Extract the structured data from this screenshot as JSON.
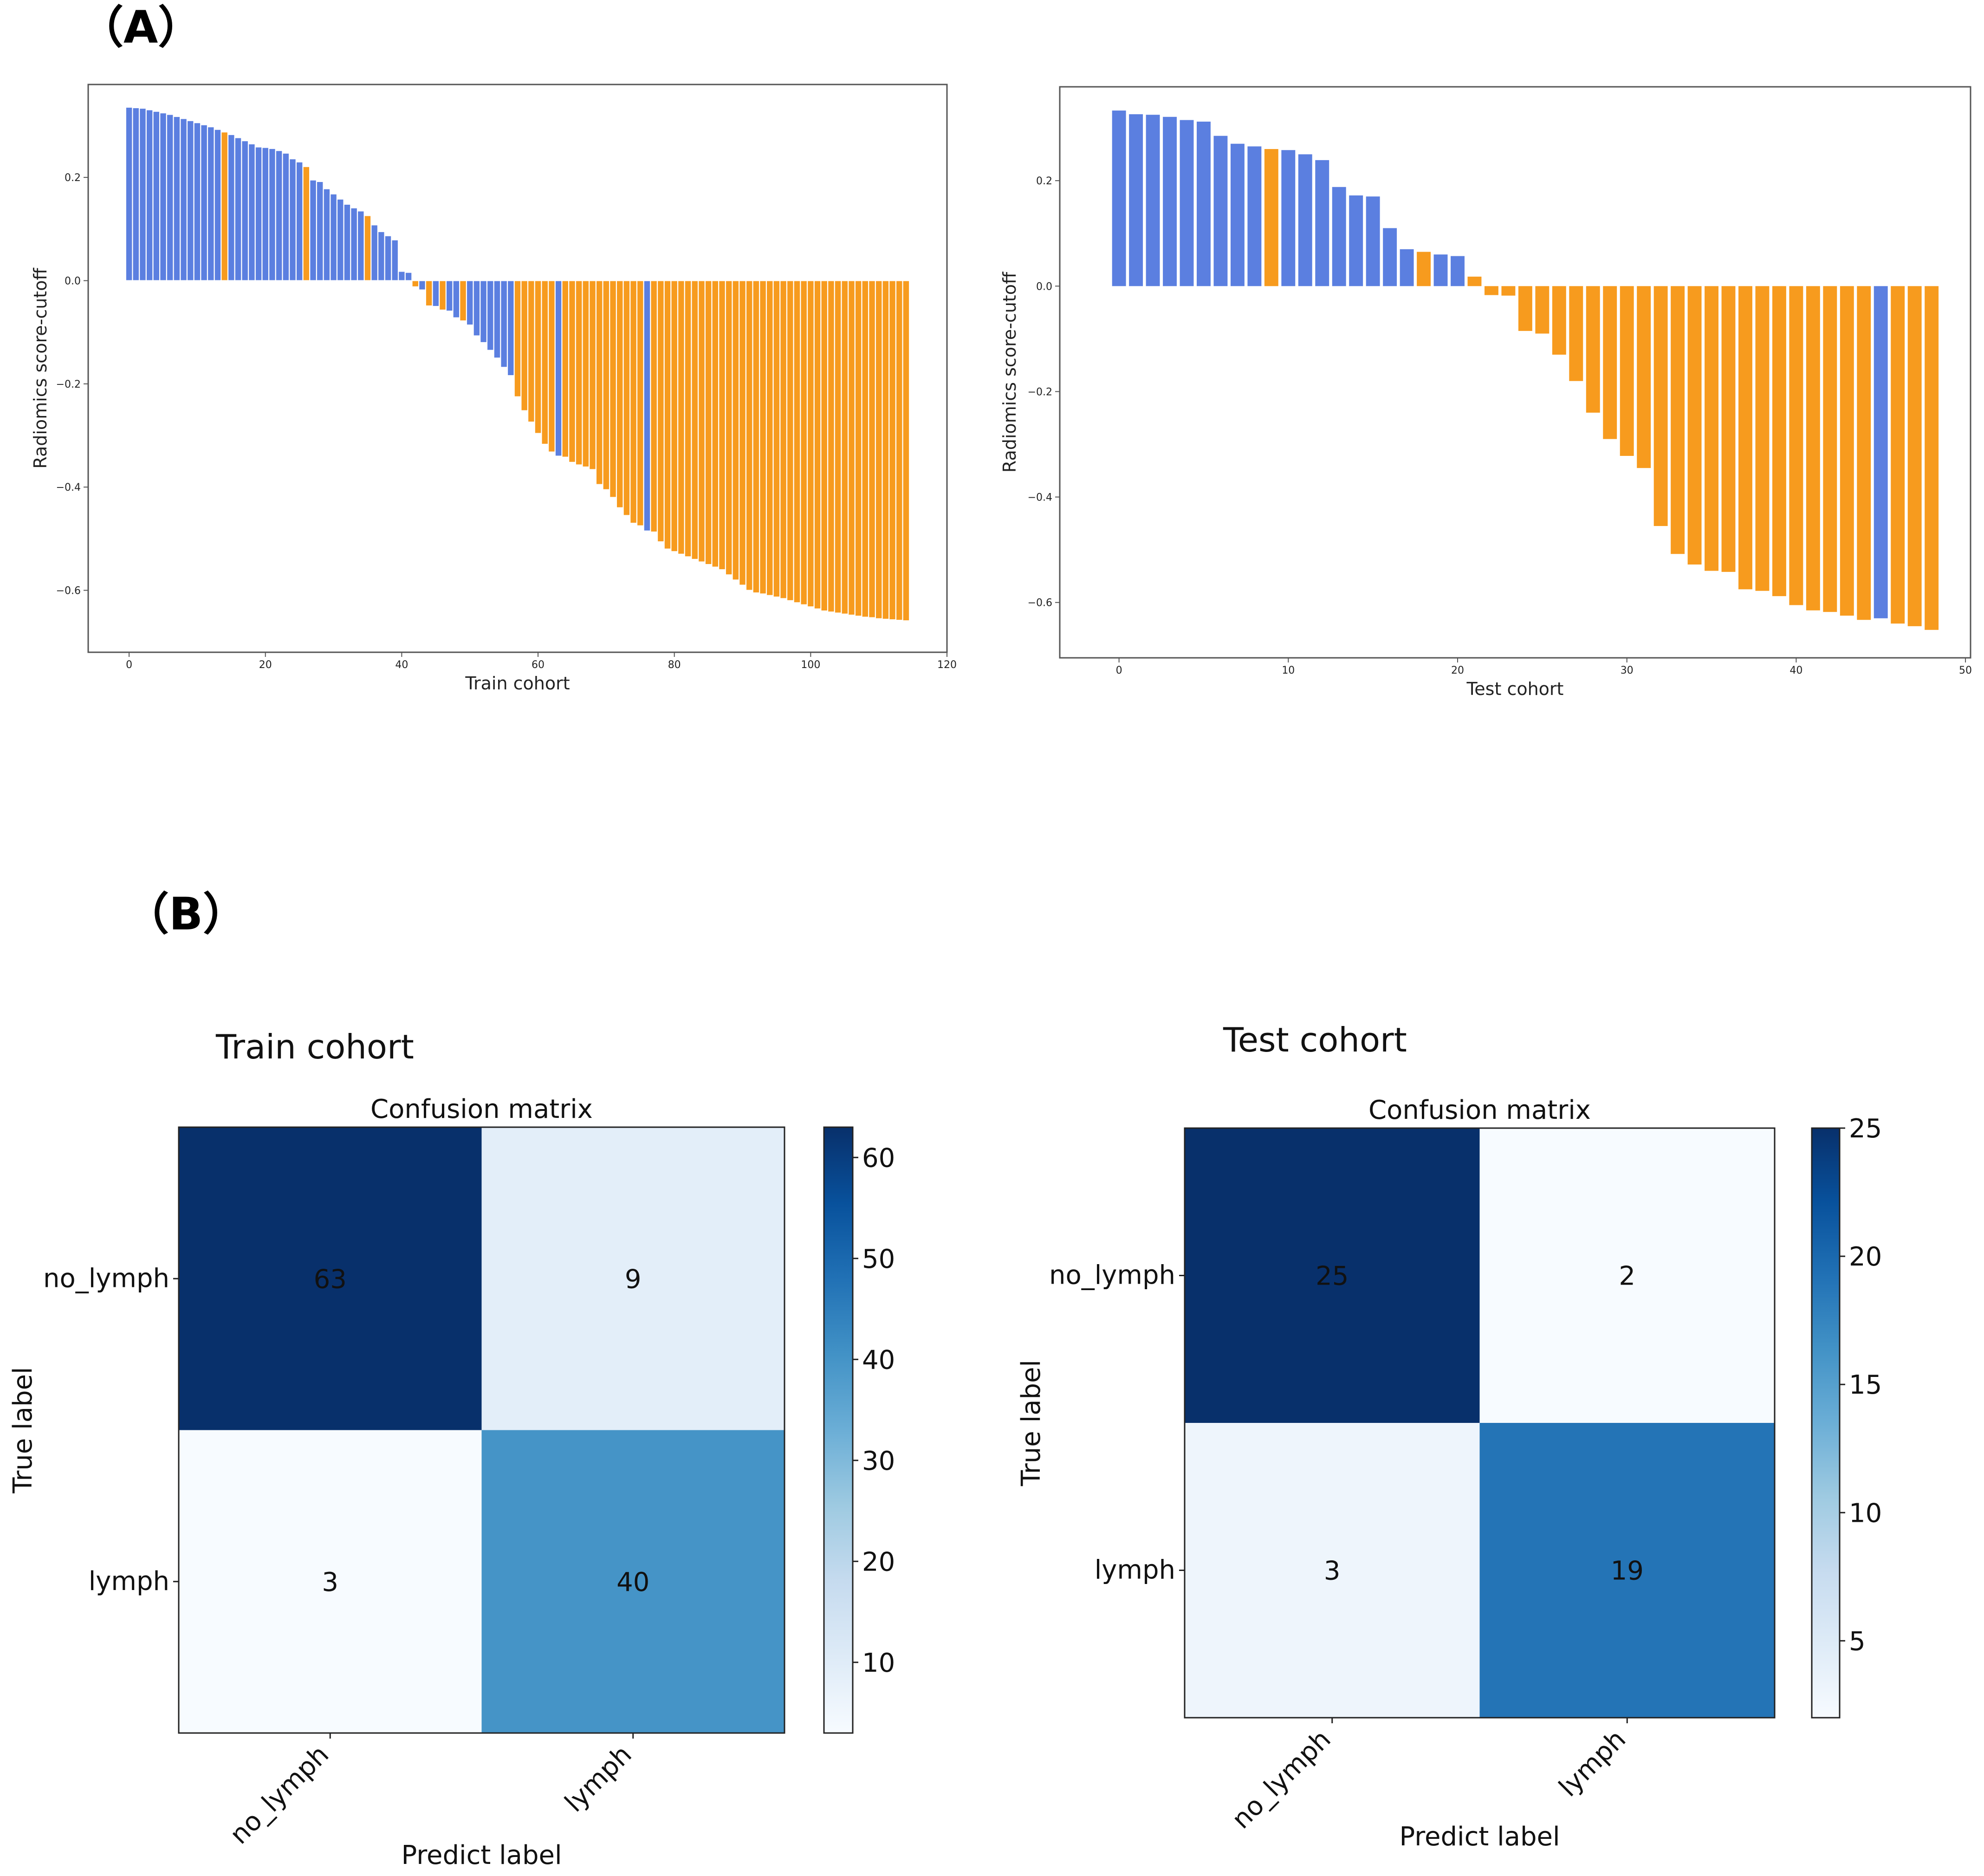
{
  "panels": {
    "a_label": "（A）",
    "b_label": "（B）"
  },
  "chart_data": [
    {
      "type": "bar",
      "name": "waterfall-train",
      "xlabel": "Train cohort",
      "ylabel": "Radiomics score-cutoff",
      "xlim": [
        -6,
        120
      ],
      "ylim": [
        -0.72,
        0.38
      ],
      "xticks": [
        0,
        20,
        40,
        60,
        80,
        100,
        120
      ],
      "yticks": [
        -0.6,
        -0.4,
        -0.2,
        0.0,
        0.2
      ],
      "ytick_labels": [
        "−0.6",
        "−0.4",
        "−0.2",
        "0.0",
        "0.2"
      ],
      "colors": {
        "no_lymph": "#5b7fe0",
        "lymph": "#f79b1e"
      },
      "values": [
        0.336,
        0.335,
        0.334,
        0.331,
        0.328,
        0.325,
        0.322,
        0.318,
        0.314,
        0.31,
        0.306,
        0.302,
        0.298,
        0.293,
        0.288,
        0.283,
        0.277,
        0.271,
        0.265,
        0.259,
        0.258,
        0.256,
        0.252,
        0.247,
        0.236,
        0.23,
        0.221,
        0.195,
        0.192,
        0.178,
        0.168,
        0.158,
        0.148,
        0.141,
        0.135,
        0.126,
        0.108,
        0.095,
        0.087,
        0.079,
        0.018,
        0.016,
        -0.012,
        -0.018,
        -0.049,
        -0.05,
        -0.057,
        -0.059,
        -0.072,
        -0.078,
        -0.086,
        -0.107,
        -0.12,
        -0.135,
        -0.15,
        -0.168,
        -0.184,
        -0.225,
        -0.252,
        -0.274,
        -0.296,
        -0.317,
        -0.332,
        -0.34,
        -0.342,
        -0.352,
        -0.357,
        -0.361,
        -0.366,
        -0.395,
        -0.405,
        -0.42,
        -0.44,
        -0.455,
        -0.47,
        -0.475,
        -0.485,
        -0.487,
        -0.506,
        -0.52,
        -0.525,
        -0.53,
        -0.535,
        -0.54,
        -0.545,
        -0.55,
        -0.555,
        -0.56,
        -0.57,
        -0.58,
        -0.59,
        -0.6,
        -0.605,
        -0.607,
        -0.61,
        -0.613,
        -0.616,
        -0.62,
        -0.624,
        -0.628,
        -0.632,
        -0.636,
        -0.64,
        -0.642,
        -0.644,
        -0.646,
        -0.648,
        -0.65,
        -0.652,
        -0.653,
        -0.655,
        -0.656,
        -0.657,
        -0.658,
        -0.659
      ],
      "labels": [
        "no_lymph",
        "no_lymph",
        "no_lymph",
        "no_lymph",
        "no_lymph",
        "no_lymph",
        "no_lymph",
        "no_lymph",
        "no_lymph",
        "no_lymph",
        "no_lymph",
        "no_lymph",
        "no_lymph",
        "no_lymph",
        "lymph",
        "no_lymph",
        "no_lymph",
        "no_lymph",
        "no_lymph",
        "no_lymph",
        "no_lymph",
        "no_lymph",
        "no_lymph",
        "no_lymph",
        "no_lymph",
        "no_lymph",
        "lymph",
        "no_lymph",
        "no_lymph",
        "no_lymph",
        "no_lymph",
        "no_lymph",
        "no_lymph",
        "no_lymph",
        "no_lymph",
        "lymph",
        "no_lymph",
        "no_lymph",
        "no_lymph",
        "no_lymph",
        "no_lymph",
        "no_lymph",
        "lymph",
        "no_lymph",
        "lymph",
        "no_lymph",
        "lymph",
        "no_lymph",
        "no_lymph",
        "lymph",
        "no_lymph",
        "no_lymph",
        "no_lymph",
        "no_lymph",
        "no_lymph",
        "no_lymph",
        "no_lymph",
        "lymph",
        "lymph",
        "lymph",
        "lymph",
        "lymph",
        "lymph",
        "no_lymph",
        "lymph",
        "lymph",
        "lymph",
        "lymph",
        "lymph",
        "lymph",
        "lymph",
        "lymph",
        "lymph",
        "lymph",
        "lymph",
        "lymph",
        "no_lymph",
        "lymph",
        "lymph",
        "lymph",
        "lymph",
        "lymph",
        "lymph",
        "lymph",
        "lymph",
        "lymph",
        "lymph",
        "lymph",
        "lymph",
        "lymph",
        "lymph",
        "lymph",
        "lymph",
        "lymph",
        "lymph",
        "lymph",
        "lymph",
        "lymph",
        "lymph",
        "lymph",
        "lymph",
        "lymph",
        "lymph",
        "lymph",
        "lymph",
        "lymph",
        "lymph",
        "lymph",
        "lymph",
        "lymph",
        "lymph",
        "lymph",
        "lymph",
        "lymph",
        "lymph"
      ]
    },
    {
      "type": "bar",
      "name": "waterfall-test",
      "xlabel": "Test cohort",
      "ylabel": "Radiomics score-cutoff",
      "xlim": [
        -3.5,
        50.3
      ],
      "ylim": [
        -0.705,
        0.378
      ],
      "xticks": [
        0,
        10,
        20,
        30,
        40,
        50
      ],
      "yticks": [
        -0.6,
        -0.4,
        -0.2,
        0.0,
        0.2
      ],
      "ytick_labels": [
        "−0.6",
        "−0.4",
        "−0.2",
        "0.0",
        "0.2"
      ],
      "colors": {
        "no_lymph": "#5b7fe0",
        "lymph": "#f79b1e"
      },
      "values": [
        0.333,
        0.326,
        0.325,
        0.321,
        0.315,
        0.312,
        0.285,
        0.27,
        0.265,
        0.26,
        0.258,
        0.25,
        0.239,
        0.188,
        0.172,
        0.17,
        0.11,
        0.07,
        0.065,
        0.06,
        0.057,
        0.018,
        -0.017,
        -0.018,
        -0.085,
        -0.09,
        -0.13,
        -0.18,
        -0.24,
        -0.29,
        -0.322,
        -0.345,
        -0.455,
        -0.508,
        -0.528,
        -0.54,
        -0.542,
        -0.575,
        -0.578,
        -0.588,
        -0.605,
        -0.615,
        -0.618,
        -0.625,
        -0.633,
        -0.63,
        -0.64,
        -0.645,
        -0.652
      ],
      "labels": [
        "no_lymph",
        "no_lymph",
        "no_lymph",
        "no_lymph",
        "no_lymph",
        "no_lymph",
        "no_lymph",
        "no_lymph",
        "no_lymph",
        "lymph",
        "no_lymph",
        "no_lymph",
        "no_lymph",
        "no_lymph",
        "no_lymph",
        "no_lymph",
        "no_lymph",
        "no_lymph",
        "lymph",
        "no_lymph",
        "no_lymph",
        "lymph",
        "lymph",
        "lymph",
        "lymph",
        "lymph",
        "lymph",
        "lymph",
        "lymph",
        "lymph",
        "lymph",
        "lymph",
        "lymph",
        "lymph",
        "lymph",
        "lymph",
        "lymph",
        "lymph",
        "lymph",
        "lymph",
        "lymph",
        "lymph",
        "lymph",
        "lymph",
        "lymph",
        "no_lymph",
        "lymph",
        "lymph",
        "lymph"
      ]
    },
    {
      "type": "heatmap",
      "name": "cm-train",
      "subtitle": "Train cohort",
      "title": "Confusion matrix",
      "xlabel": "Predict label",
      "ylabel": "True label",
      "row_labels": [
        "no_lymph",
        "lymph"
      ],
      "col_labels": [
        "no_lymph",
        "lymph"
      ],
      "matrix": [
        [
          63,
          9
        ],
        [
          3,
          40
        ]
      ],
      "colorbar_range": [
        3,
        63
      ],
      "colorbar_ticks": [
        10,
        20,
        30,
        40,
        50,
        60
      ],
      "colormap": "Blues"
    },
    {
      "type": "heatmap",
      "name": "cm-test",
      "subtitle": "Test cohort",
      "title": "Confusion matrix",
      "xlabel": "Predict label",
      "ylabel": "True label",
      "row_labels": [
        "no_lymph",
        "lymph"
      ],
      "col_labels": [
        "no_lymph",
        "lymph"
      ],
      "matrix": [
        [
          25,
          2
        ],
        [
          3,
          19
        ]
      ],
      "colorbar_range": [
        2,
        25
      ],
      "colorbar_ticks": [
        5,
        10,
        15,
        20,
        25
      ],
      "colormap": "Blues"
    }
  ]
}
